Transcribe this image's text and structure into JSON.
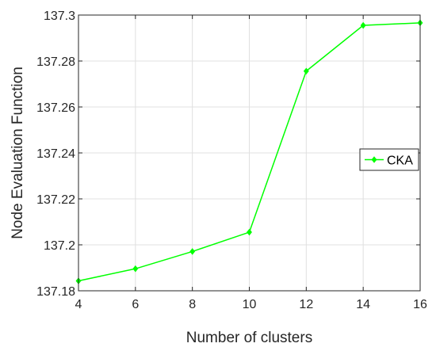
{
  "chart_data": {
    "type": "line",
    "title": "",
    "xlabel": "Number of clusters",
    "ylabel": "Node Evaluation Function",
    "xlim": [
      4,
      16
    ],
    "ylim": [
      137.18,
      137.3
    ],
    "xticks": [
      4,
      6,
      8,
      10,
      12,
      14,
      16
    ],
    "yticks": [
      137.18,
      137.2,
      137.22,
      137.24,
      137.26,
      137.28,
      137.3
    ],
    "xtick_labels": [
      "4",
      "6",
      "8",
      "10",
      "12",
      "14",
      "16"
    ],
    "ytick_labels": [
      "137.18",
      "137.2",
      "137.22",
      "137.24",
      "137.26",
      "137.28",
      "137.3"
    ],
    "grid": true,
    "legend_position": "right",
    "series": [
      {
        "name": "CKA",
        "color": "#00ff00",
        "marker": "diamond",
        "x": [
          4,
          6,
          8,
          10,
          12,
          14,
          16
        ],
        "y": [
          137.1843,
          137.1896,
          137.1971,
          137.2055,
          137.2756,
          137.2955,
          137.2966
        ]
      }
    ]
  }
}
